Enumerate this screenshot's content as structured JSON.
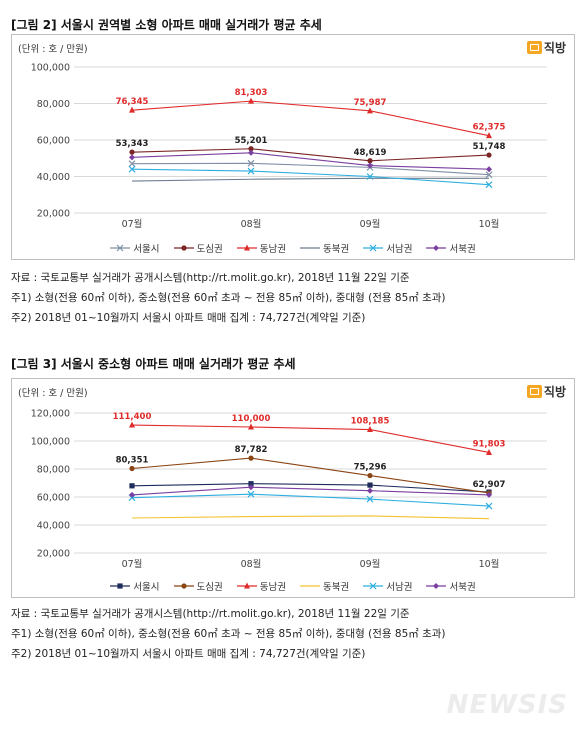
{
  "figures": [
    {
      "title": "[그림 2] 서울시 권역별 소형 아파트 매매 실거래가 평균 추세",
      "unit_label": "(단위 : 호 / 만원)",
      "logo_text": "직방",
      "notes": [
        "자료 : 국토교통부 실거래가 공개시스템(http://rt.molit.go.kr), 2018년 11월 22일 기준",
        "주1) 소형(전용 60㎡ 이하), 중소형(전용 60㎡ 초과 ~ 전용 85㎡ 이하), 중대형 (전용 85㎡ 초과)",
        "주2) 2018년 01~10월까지 서울시 아파트 매매 집계 : 74,727건(계약일 기준)"
      ]
    },
    {
      "title": "[그림 3] 서울시 중소형 아파트 매매 실거래가 평균 추세",
      "unit_label": "(단위 : 호 / 만원)",
      "logo_text": "직방",
      "notes": [
        "자료 : 국토교통부 실거래가 공개시스템(http://rt.molit.go.kr), 2018년 11월 22일 기준",
        "주1) 소형(전용 60㎡ 이하), 중소형(전용 60㎡ 초과 ~ 전용 85㎡ 이하), 중대형 (전용 85㎡ 초과)",
        "주2) 2018년 01~10월까지 서울시 아파트 매매 집계 : 74,727건(계약일 기준)"
      ]
    }
  ],
  "watermark": "NEWSIS",
  "chart_data": [
    {
      "type": "line",
      "title": "[그림 2] 서울시 권역별 소형 아파트 매매 실거래가 평균 추세",
      "categories": [
        "07월",
        "08월",
        "09월",
        "10월"
      ],
      "ylim": [
        20000,
        100000
      ],
      "yticks": [
        20000,
        40000,
        60000,
        80000,
        100000
      ],
      "ytick_labels": [
        "20,000",
        "40,000",
        "60,000",
        "80,000",
        "100,000"
      ],
      "grid": true,
      "legend_position": "bottom",
      "series": [
        {
          "name": "서울시",
          "values": [
            47000,
            47200,
            45000,
            41000
          ],
          "color": "#7f8fa6",
          "marker": "x",
          "labels": []
        },
        {
          "name": "도심권",
          "values": [
            53343,
            55201,
            48619,
            51748
          ],
          "color": "#7a2424",
          "marker": "circle",
          "labels": [
            "53,343",
            "55,201",
            "48,619",
            "51,748"
          ],
          "label_color": "#222222"
        },
        {
          "name": "동남권",
          "values": [
            76345,
            81303,
            75987,
            62375
          ],
          "color": "#e02b2b",
          "marker": "triangle",
          "labels": [
            "76,345",
            "81,303",
            "75,987",
            "62,375"
          ],
          "label_color": "#e02b2b"
        },
        {
          "name": "동북권",
          "values": [
            37500,
            38500,
            39000,
            39000
          ],
          "color": "#6b7d91",
          "marker": "none",
          "labels": []
        },
        {
          "name": "서남권",
          "values": [
            44000,
            43000,
            40000,
            35500
          ],
          "color": "#2eaee0",
          "marker": "x",
          "labels": []
        },
        {
          "name": "서북권",
          "values": [
            50500,
            53000,
            46000,
            44000
          ],
          "color": "#7a3fa0",
          "marker": "diamond",
          "labels": []
        }
      ]
    },
    {
      "type": "line",
      "title": "[그림 3] 서울시 중소형 아파트 매매 실거래가 평균 추세",
      "categories": [
        "07월",
        "08월",
        "09월",
        "10월"
      ],
      "ylim": [
        20000,
        120000
      ],
      "yticks": [
        20000,
        40000,
        60000,
        80000,
        100000,
        120000
      ],
      "ytick_labels": [
        "20,000",
        "40,000",
        "60,000",
        "80,000",
        "100,000",
        "120,000"
      ],
      "grid": true,
      "legend_position": "bottom",
      "series": [
        {
          "name": "서울시",
          "values": [
            68000,
            69500,
            68500,
            63500
          ],
          "color": "#1f2d5c",
          "marker": "square",
          "labels": []
        },
        {
          "name": "도심권",
          "values": [
            80351,
            87782,
            75296,
            62907
          ],
          "color": "#8b4513",
          "marker": "circle",
          "labels": [
            "80,351",
            "87,782",
            "75,296",
            "62,907"
          ],
          "label_color": "#222222"
        },
        {
          "name": "동남권",
          "values": [
            111400,
            110000,
            108185,
            91803
          ],
          "color": "#e02b2b",
          "marker": "triangle",
          "labels": [
            "111,400",
            "110,000",
            "108,185",
            "91,803"
          ],
          "label_color": "#e02b2b"
        },
        {
          "name": "동북권",
          "values": [
            45000,
            46000,
            46500,
            44500
          ],
          "color": "#f2c230",
          "marker": "none",
          "labels": []
        },
        {
          "name": "서남권",
          "values": [
            59500,
            62000,
            58500,
            53500
          ],
          "color": "#2eaee0",
          "marker": "x",
          "labels": []
        },
        {
          "name": "서북권",
          "values": [
            61500,
            67000,
            64500,
            61500
          ],
          "color": "#7a3fa0",
          "marker": "diamond",
          "labels": []
        }
      ]
    }
  ]
}
